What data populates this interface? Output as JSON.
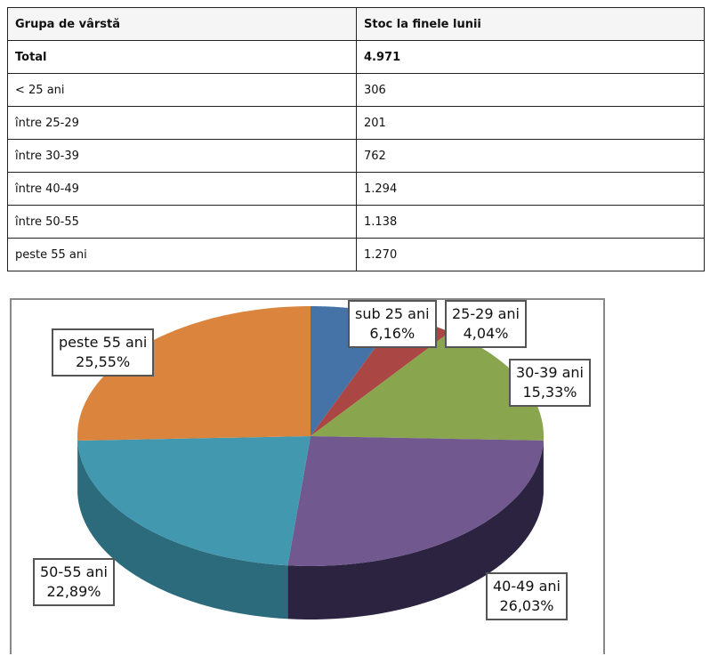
{
  "table": {
    "headers": [
      "Grupa de vârstă",
      "Stoc la finele lunii"
    ],
    "rows": [
      {
        "group": "Total",
        "value": "4.971"
      },
      {
        "group": "< 25 ani",
        "value": "306"
      },
      {
        "group": "între 25-29",
        "value": "201"
      },
      {
        "group": "între 30-39",
        "value": "762"
      },
      {
        "group": "între 40-49",
        "value": "1.294"
      },
      {
        "group": "între 50-55",
        "value": "1.138"
      },
      {
        "group": "peste 55 ani",
        "value": "1.270"
      }
    ]
  },
  "chart_data": {
    "type": "pie",
    "title": "",
    "categories": [
      "sub 25 ani",
      "25-29 ani",
      "30-39 ani",
      "40-49 ani",
      "50-55 ani",
      "peste 55 ani"
    ],
    "values": [
      6.16,
      4.04,
      15.33,
      26.03,
      22.89,
      25.55
    ],
    "labels": [
      "6,16%",
      "4,04%",
      "15,33%",
      "26,03%",
      "22,89%",
      "25,55%"
    ],
    "colors": [
      "#4572a7",
      "#aa4643",
      "#89a54e",
      "#71588f",
      "#4198af",
      "#db843d"
    ],
    "side_colors": [
      "#2d4a6e",
      "#6e2e2c",
      "#5a6b33",
      "#2b2340",
      "#2c6b7c",
      "#8f5628"
    ]
  }
}
